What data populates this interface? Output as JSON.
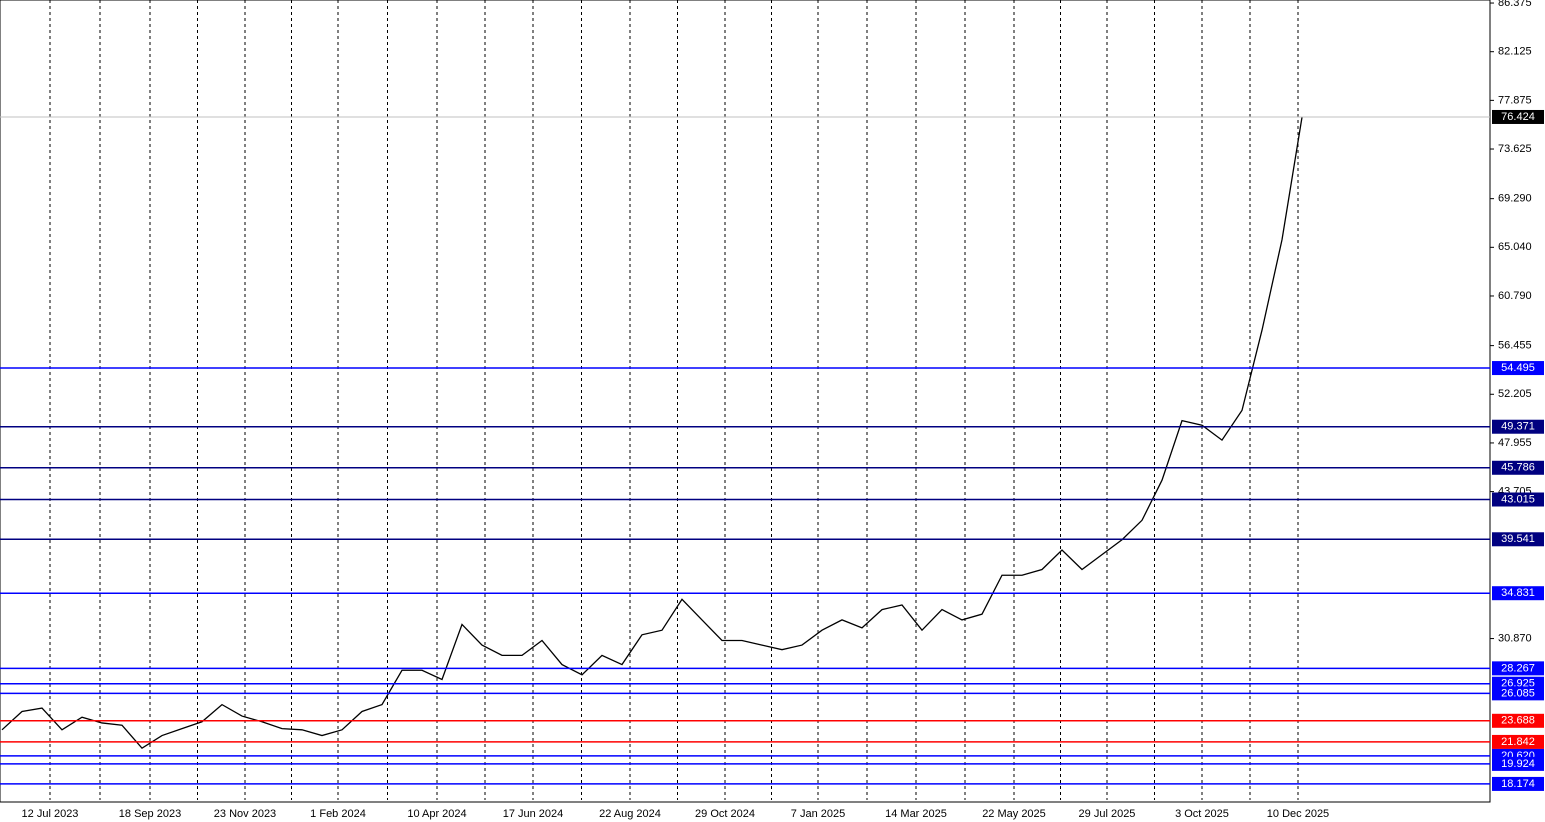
{
  "chart_data": {
    "type": "line",
    "xlim": [
      0,
      74.5
    ],
    "ylim": [
      16.77,
      86.64
    ],
    "xticks": [
      {
        "value": 2.5,
        "label": "12 Jul 2023"
      },
      {
        "value": 7.5,
        "label": "18 Sep 2023"
      },
      {
        "value": 12.25,
        "label": "23 Nov 2023"
      },
      {
        "value": 16.9,
        "label": "1 Feb 2024"
      },
      {
        "value": 21.85,
        "label": "10 Apr 2024"
      },
      {
        "value": 26.65,
        "label": "17 Jun 2024"
      },
      {
        "value": 31.5,
        "label": "22 Aug 2024"
      },
      {
        "value": 36.25,
        "label": "29 Oct 2024"
      },
      {
        "value": 40.9,
        "label": "7 Jan 2025"
      },
      {
        "value": 45.8,
        "label": "14 Mar 2025"
      },
      {
        "value": 50.7,
        "label": "22 May 2025"
      },
      {
        "value": 55.35,
        "label": "29 Jul 2025"
      },
      {
        "value": 60.1,
        "label": "3 Oct 2025"
      },
      {
        "value": 64.9,
        "label": "10 Dec 2025"
      }
    ],
    "yticks": [
      86.375,
      82.125,
      77.875,
      73.625,
      {
        "value": 69.29,
        "label": "69.290"
      },
      {
        "value": 65.04,
        "label": "65.040"
      },
      {
        "value": 60.79,
        "label": "60.790"
      },
      56.455,
      52.205,
      47.955,
      43.705,
      {
        "value": 30.87,
        "label": "30.870"
      }
    ],
    "x_grid": true,
    "series": [
      {
        "color": "#000000",
        "values": [
          22.9,
          24.5,
          24.8,
          22.9,
          24.0,
          23.5,
          23.3,
          21.3,
          22.4,
          23.0,
          23.6,
          25.1,
          24.1,
          23.6,
          23.0,
          22.9,
          22.4,
          22.9,
          24.5,
          25.1,
          28.1,
          28.1,
          27.3,
          32.1,
          30.3,
          29.4,
          29.4,
          30.7,
          28.6,
          27.7,
          29.4,
          28.6,
          31.2,
          31.6,
          34.3,
          32.5,
          30.7,
          30.7,
          30.3,
          29.9,
          30.3,
          31.6,
          32.5,
          31.8,
          33.4,
          33.8,
          31.6,
          33.4,
          32.5,
          33.0,
          36.4,
          36.4,
          36.9,
          38.6,
          36.9,
          38.2,
          39.5,
          41.2,
          44.7,
          49.9,
          49.5,
          48.2,
          50.8,
          57.8,
          65.7,
          76.4
        ]
      }
    ],
    "levels": [
      {
        "value": 54.495,
        "color": "#0000ff"
      },
      {
        "value": 49.371,
        "color": "#000080"
      },
      {
        "value": 45.786,
        "color": "#000080"
      },
      {
        "value": 43.015,
        "color": "#000080"
      },
      {
        "value": 39.541,
        "color": "#000080"
      },
      {
        "value": 34.831,
        "color": "#0000ff"
      },
      {
        "value": 28.267,
        "color": "#0000ff"
      },
      {
        "value": 26.925,
        "color": "#0000ff"
      },
      {
        "value": 26.085,
        "color": "#0000ff"
      },
      {
        "value": 23.688,
        "color": "#ff0000"
      },
      {
        "value": 21.842,
        "color": "#ff0000"
      },
      {
        "value": 20.62,
        "label": "20.620",
        "color": "#0000ff"
      },
      {
        "value": 19.924,
        "color": "#0000ff"
      },
      {
        "value": 18.174,
        "color": "#0000ff"
      }
    ],
    "last_price": {
      "value": 76.424,
      "color": "#000000",
      "line_color": "#c0c0c0"
    }
  }
}
